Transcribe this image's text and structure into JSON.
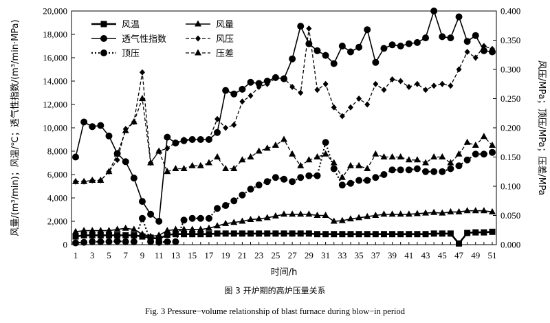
{
  "chart_data": {
    "type": "line",
    "x": [
      1,
      2,
      3,
      4,
      5,
      6,
      7,
      8,
      9,
      10,
      11,
      12,
      13,
      14,
      15,
      16,
      17,
      18,
      19,
      20,
      21,
      22,
      23,
      24,
      25,
      26,
      27,
      28,
      29,
      30,
      31,
      32,
      33,
      34,
      35,
      36,
      37,
      38,
      39,
      40,
      41,
      42,
      43,
      44,
      45,
      46,
      47,
      48,
      49,
      50,
      51
    ],
    "x_ticks": [
      1,
      3,
      5,
      7,
      9,
      11,
      13,
      15,
      17,
      19,
      21,
      23,
      25,
      27,
      29,
      31,
      33,
      35,
      37,
      39,
      41,
      43,
      45,
      47,
      49,
      51
    ],
    "xlabel": "时间/h",
    "ylabel_left": "风量/(m³/min)；风温/℃；透气性指数/(m³/min·MPa)",
    "ylabel_right": "风压/MPa；顶压/MPa；压差/MPa",
    "ylim_left": [
      0,
      20000
    ],
    "ylim_right": [
      0,
      0.4
    ],
    "y_ticks_left": [
      "0",
      "2,000",
      "4,000",
      "6,000",
      "8,000",
      "10,000",
      "12,000",
      "14,000",
      "16,000",
      "18,000",
      "20,000"
    ],
    "y_ticks_right": [
      "0.000",
      "0.050",
      "0.100",
      "0.150",
      "0.200",
      "0.250",
      "0.300",
      "0.350",
      "0.400"
    ],
    "series": [
      {
        "name": "风温",
        "axis": "left",
        "marker": "square",
        "line": "solid",
        "values": [
          700,
          800,
          800,
          800,
          800,
          800,
          800,
          800,
          700,
          600,
          500,
          850,
          900,
          900,
          900,
          900,
          900,
          950,
          950,
          950,
          950,
          950,
          950,
          950,
          950,
          950,
          950,
          950,
          950,
          900,
          900,
          900,
          900,
          900,
          900,
          900,
          900,
          900,
          900,
          900,
          900,
          900,
          900,
          950,
          950,
          950,
          100,
          1000,
          1050,
          1050,
          1100
        ]
      },
      {
        "name": "风量",
        "axis": "left",
        "marker": "triangle",
        "line": "solid",
        "values": [
          1100,
          1200,
          1200,
          1200,
          1200,
          1300,
          1400,
          1300,
          900,
          700,
          800,
          1200,
          1300,
          1300,
          1300,
          1300,
          1400,
          1600,
          1800,
          1900,
          2000,
          2150,
          2200,
          2300,
          2450,
          2600,
          2600,
          2600,
          2600,
          2500,
          2500,
          2000,
          2050,
          2200,
          2300,
          2400,
          2500,
          2600,
          2600,
          2600,
          2600,
          2650,
          2700,
          2750,
          2700,
          2800,
          2800,
          2900,
          2900,
          2900,
          2800
        ]
      },
      {
        "name": "透气性指数",
        "axis": "left",
        "marker": "circle",
        "line": "solid",
        "values": [
          7500,
          10500,
          10100,
          10200,
          9300,
          7800,
          7100,
          5700,
          3700,
          2600,
          2000,
          9200,
          8700,
          8900,
          9000,
          9000,
          9000,
          9600,
          13200,
          12900,
          13300,
          13900,
          13800,
          14000,
          14300,
          14200,
          15900,
          18700,
          17200,
          16600,
          16200,
          15500,
          17000,
          16500,
          16900,
          18400,
          15600,
          16800,
          17100,
          17000,
          17200,
          17300,
          17700,
          20000,
          17800,
          17700,
          19500,
          17400,
          17900,
          16600,
          16500
        ]
      },
      {
        "name": "风压",
        "axis": "right",
        "marker": "diamond",
        "line": "dashed",
        "values": [
          0.108,
          0.108,
          0.11,
          0.11,
          0.125,
          0.145,
          0.198,
          0.21,
          0.295,
          0.14,
          0.16,
          0.165,
          0.175,
          0.18,
          0.18,
          0.18,
          0.18,
          0.215,
          0.2,
          0.205,
          0.245,
          0.255,
          0.27,
          0.275,
          0.285,
          0.285,
          0.27,
          0.26,
          0.37,
          0.265,
          0.275,
          0.235,
          0.22,
          0.235,
          0.25,
          0.24,
          0.275,
          0.265,
          0.283,
          0.28,
          0.27,
          0.275,
          0.265,
          0.272,
          0.275,
          0.272,
          0.3,
          0.33,
          0.32,
          0.34,
          0.335
        ]
      },
      {
        "name": "顶压",
        "axis": "right",
        "marker": "circle",
        "line": "dotted",
        "values": [
          0.003,
          0.004,
          0.005,
          0.005,
          0.005,
          0.006,
          0.005,
          0.005,
          0.045,
          0.005,
          0.004,
          0.005,
          0.005,
          0.042,
          0.045,
          0.045,
          0.045,
          0.062,
          0.067,
          0.075,
          0.085,
          0.095,
          0.102,
          0.108,
          0.115,
          0.112,
          0.108,
          0.115,
          0.118,
          0.118,
          0.175,
          0.13,
          0.102,
          0.105,
          0.11,
          0.11,
          0.115,
          0.12,
          0.128,
          0.128,
          0.128,
          0.13,
          0.125,
          0.125,
          0.125,
          0.13,
          0.135,
          0.145,
          0.155,
          0.155,
          0.158
        ]
      },
      {
        "name": "压差",
        "axis": "right",
        "marker": "triangle",
        "line": "dashed",
        "values": [
          0.108,
          0.108,
          0.11,
          0.11,
          0.125,
          0.155,
          0.195,
          0.21,
          0.25,
          0.14,
          0.16,
          0.125,
          0.13,
          0.13,
          0.135,
          0.135,
          0.14,
          0.15,
          0.13,
          0.13,
          0.145,
          0.15,
          0.16,
          0.165,
          0.17,
          0.18,
          0.155,
          0.135,
          0.145,
          0.15,
          0.155,
          0.14,
          0.115,
          0.135,
          0.135,
          0.13,
          0.155,
          0.15,
          0.15,
          0.15,
          0.145,
          0.145,
          0.14,
          0.15,
          0.15,
          0.14,
          0.155,
          0.175,
          0.17,
          0.185,
          0.17
        ]
      }
    ]
  },
  "caption": {
    "chinese": "图 3   开炉期的高炉压量关系",
    "english": "Fig. 3   Pressure−volume relationship of blast furnace during blow−in period"
  }
}
